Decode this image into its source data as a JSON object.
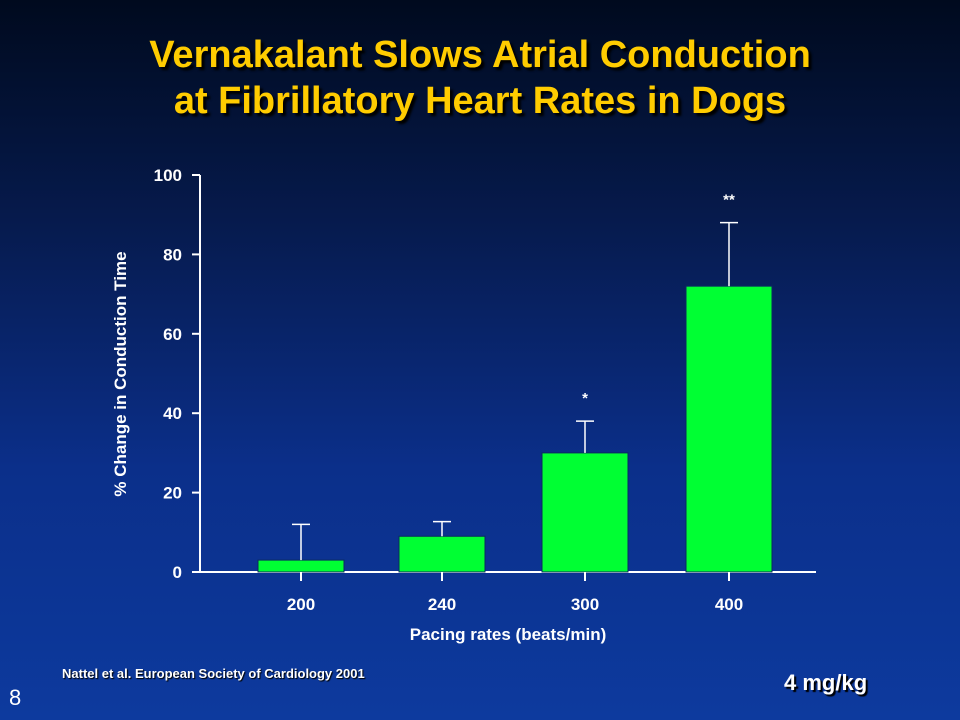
{
  "title_line1": "Vernakalant Slows Atrial Conduction",
  "title_line2": "at Fibrillatory Heart Rates in Dogs",
  "citation": "Nattel et al. European Society of Cardiology 2001",
  "dose": "4 mg/kg",
  "slide_number": "8",
  "colors": {
    "title": "#ffcc00",
    "bar": "#00ff33",
    "axis": "#ffffff",
    "background": "#0b2f8a"
  },
  "chart_data": {
    "type": "bar",
    "categories": [
      "200",
      "240",
      "300",
      "400"
    ],
    "values": [
      3,
      9,
      30,
      72
    ],
    "error_upper": [
      12,
      12.7,
      38,
      88
    ],
    "annotations": [
      "",
      "",
      "*",
      "**"
    ],
    "xlabel": "Pacing rates (beats/min)",
    "ylabel": "% Change in Conduction Time",
    "ylim": [
      0,
      100
    ],
    "yticks": [
      0,
      20,
      40,
      60,
      80,
      100
    ],
    "grid": false,
    "legend": "none"
  }
}
